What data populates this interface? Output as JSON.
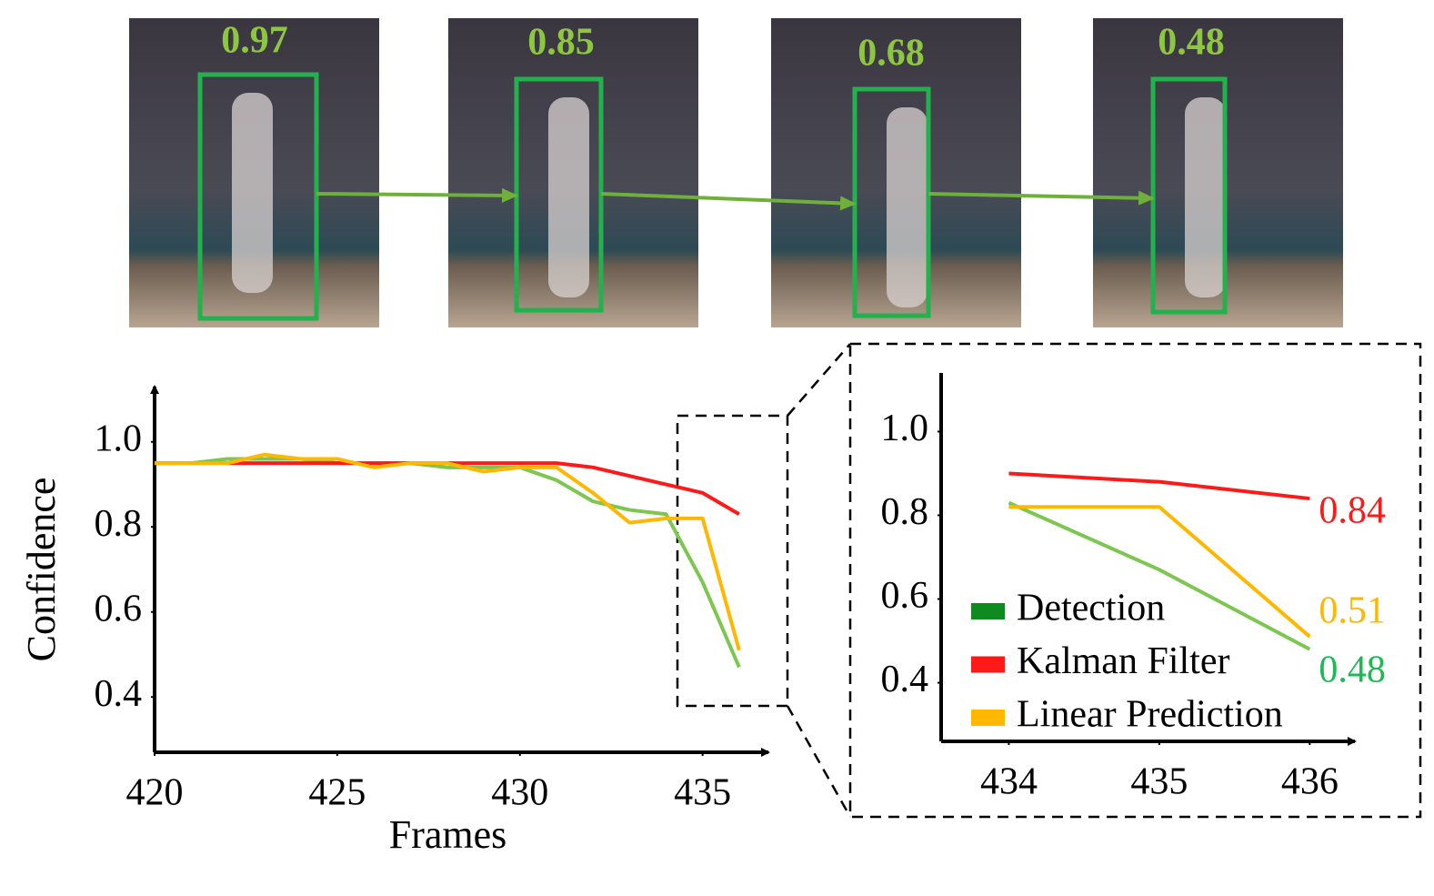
{
  "frames": [
    {
      "score": "0.97"
    },
    {
      "score": "0.85"
    },
    {
      "score": "0.68"
    },
    {
      "score": "0.48"
    }
  ],
  "chart_data": [
    {
      "type": "line",
      "x_label": "Frames",
      "y_label": "Confidence",
      "x": [
        420,
        421,
        422,
        423,
        424,
        425,
        426,
        427,
        428,
        429,
        430,
        431,
        432,
        433,
        434,
        435,
        436
      ],
      "xlim": [
        420,
        436.8
      ],
      "xticks": [
        420,
        425,
        430,
        435
      ],
      "ylim": [
        0.27,
        1.13
      ],
      "yticks": [
        0.4,
        0.6,
        0.8,
        {
          "value": 1,
          "label": "1.0"
        }
      ],
      "legend": false,
      "series": [
        {
          "name": "Detection",
          "color": "#7dc650",
          "values": [
            0.95,
            0.95,
            0.96,
            0.96,
            0.96,
            0.95,
            0.95,
            0.95,
            0.94,
            0.94,
            0.94,
            0.91,
            0.86,
            0.84,
            0.83,
            0.67,
            0.47
          ]
        },
        {
          "name": "Kalman Filter",
          "color": "#ff1a1a",
          "values": [
            0.95,
            0.95,
            0.95,
            0.95,
            0.95,
            0.95,
            0.95,
            0.95,
            0.95,
            0.95,
            0.95,
            0.95,
            0.94,
            0.92,
            0.9,
            0.88,
            0.83
          ]
        },
        {
          "name": "Linear Prediction",
          "color": "#ffb800",
          "values": [
            0.95,
            0.95,
            0.95,
            0.97,
            0.96,
            0.96,
            0.94,
            0.95,
            0.95,
            0.93,
            0.94,
            0.94,
            0.88,
            0.81,
            0.82,
            0.82,
            0.51
          ]
        }
      ]
    },
    {
      "type": "line",
      "x": [
        434,
        435,
        436
      ],
      "xlim": [
        433.55,
        436.3
      ],
      "xticks": [
        434,
        435,
        436
      ],
      "ylim": [
        0.26,
        1.14
      ],
      "yticks": [
        0.4,
        0.6,
        0.8,
        {
          "value": 1,
          "label": "1.0"
        }
      ],
      "legend": "lower left",
      "series": [
        {
          "name": "Detection",
          "color": "#7dc650",
          "label_color": "#1db954",
          "values": [
            0.83,
            0.67,
            0.48
          ]
        },
        {
          "name": "Kalman Filter",
          "color": "#ff1a1a",
          "label_color": "#ff1a1a",
          "values": [
            0.9,
            0.88,
            0.84
          ]
        },
        {
          "name": "Linear Prediction",
          "color": "#ffb800",
          "label_color": "#ffb800",
          "values": [
            0.82,
            0.82,
            0.51
          ]
        }
      ]
    }
  ]
}
